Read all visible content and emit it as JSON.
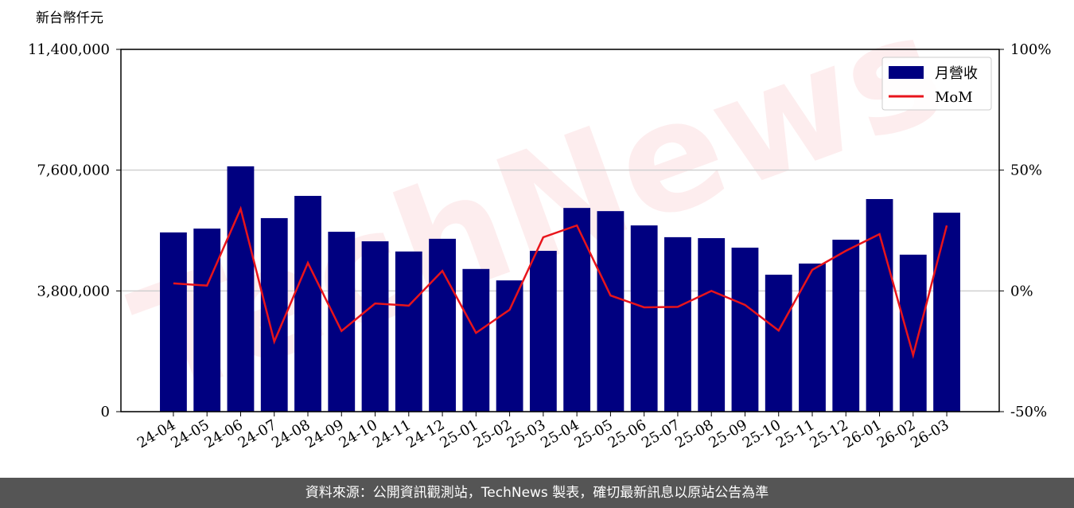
{
  "chart_data": {
    "type": "bar",
    "y_label": "新台幣仟元",
    "watermark": "TechNews",
    "categories": [
      "24-04",
      "24-05",
      "24-06",
      "24-07",
      "24-08",
      "24-09",
      "24-10",
      "24-11",
      "24-12",
      "25-01",
      "25-02",
      "25-03",
      "25-04",
      "25-05",
      "25-06",
      "25-07",
      "25-08",
      "25-09",
      "25-10",
      "25-11",
      "25-12",
      "26-01",
      "26-02",
      "26-03"
    ],
    "series": [
      {
        "name": "月營收",
        "type": "bar",
        "color": "#000080",
        "values": [
          5640000,
          5760000,
          7720000,
          6090000,
          6790000,
          5660000,
          5360000,
          5040000,
          5440000,
          4490000,
          4130000,
          5060000,
          6410000,
          6310000,
          5860000,
          5490000,
          5460000,
          5160000,
          4310000,
          4660000,
          5410000,
          6690000,
          4940000,
          6260000
        ]
      },
      {
        "name": "MoM",
        "type": "line",
        "axis": "y2",
        "color": "#e8141b",
        "values": [
          3.1,
          2.2,
          34,
          -21,
          11.6,
          -16.6,
          -5.2,
          -6.1,
          8.3,
          -17.4,
          -7.8,
          22.2,
          27.1,
          -1.9,
          -6.8,
          -6.6,
          0,
          -5.8,
          -16.4,
          8.7,
          16.6,
          23.5,
          -26.6,
          27.1
        ]
      }
    ],
    "ylim": [
      0,
      11400000
    ],
    "yticks": [
      0,
      {
        "value": 3800000,
        "label": "3,800,000"
      },
      {
        "value": 7600000,
        "label": "7,600,000"
      },
      {
        "value": 11400000,
        "label": "11,400,000"
      }
    ],
    "y2lim": [
      -50,
      100
    ],
    "y2ticks": [
      {
        "value": -50,
        "label": "-50%"
      },
      {
        "value": 0,
        "label": "0%"
      },
      {
        "value": 50,
        "label": "50%"
      },
      {
        "value": 100,
        "label": "100%"
      }
    ],
    "grid": true,
    "legend": "upper right"
  },
  "footer": "資料來源：公開資訊觀測站，TechNews 製表，確切最新訊息以原站公告為準"
}
